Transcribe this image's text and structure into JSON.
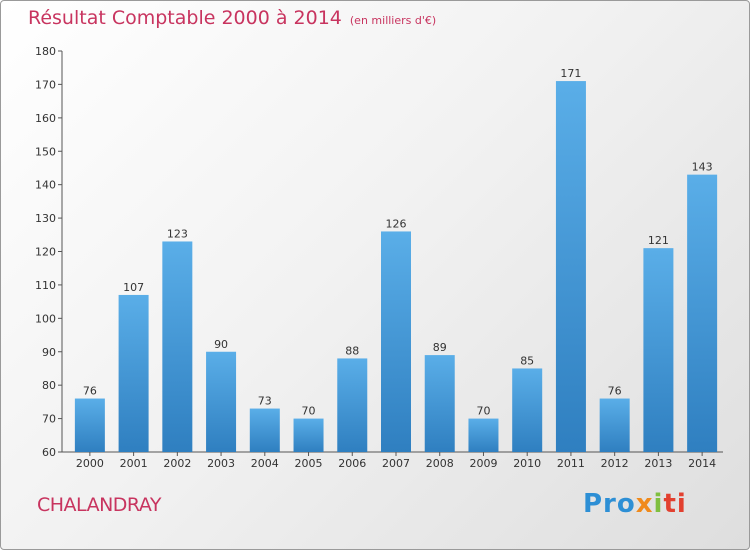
{
  "title": "Résultat Comptable 2000 à 2014",
  "unit": "(en milliers d'€)",
  "commune": "CHALANDRAY",
  "logo": {
    "part1": "Pro",
    "part2": "x",
    "part3": "i",
    "part4": "ti"
  },
  "colors": {
    "title": "#c8345f",
    "bar_top": "#5aaee8",
    "bar_bottom": "#2f7fc0"
  },
  "chart_data": {
    "type": "bar",
    "title": "Résultat Comptable 2000 à 2014",
    "xlabel": "",
    "ylabel": "",
    "categories": [
      "2000",
      "2001",
      "2002",
      "2003",
      "2004",
      "2005",
      "2006",
      "2007",
      "2008",
      "2009",
      "2010",
      "2011",
      "2012",
      "2013",
      "2014"
    ],
    "values": [
      76,
      107,
      123,
      90,
      73,
      70,
      88,
      126,
      89,
      70,
      85,
      171,
      76,
      121,
      143
    ],
    "ylim": [
      60,
      180
    ],
    "yticks": [
      60,
      70,
      80,
      90,
      100,
      110,
      120,
      130,
      140,
      150,
      160,
      170,
      180
    ],
    "grid": false
  }
}
